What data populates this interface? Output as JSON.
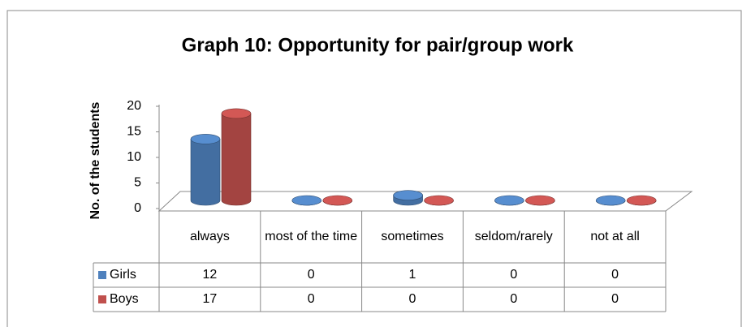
{
  "chart_data": {
    "type": "bar3d",
    "title": "Graph 10: Opportunity for pair/group work",
    "y_label": "No. of the students",
    "categories": [
      "always",
      "most of the time",
      "sometimes",
      "seldom/rarely",
      "not at all"
    ],
    "series": [
      {
        "name": "Girls",
        "color": "#4f81bd",
        "values": [
          12,
          0,
          1,
          0,
          0
        ]
      },
      {
        "name": "Boys",
        "color": "#c0504d",
        "values": [
          17,
          0,
          0,
          0,
          0
        ]
      }
    ],
    "ylim": [
      0,
      20
    ],
    "yticks": [
      0,
      5,
      10,
      15,
      20
    ]
  }
}
